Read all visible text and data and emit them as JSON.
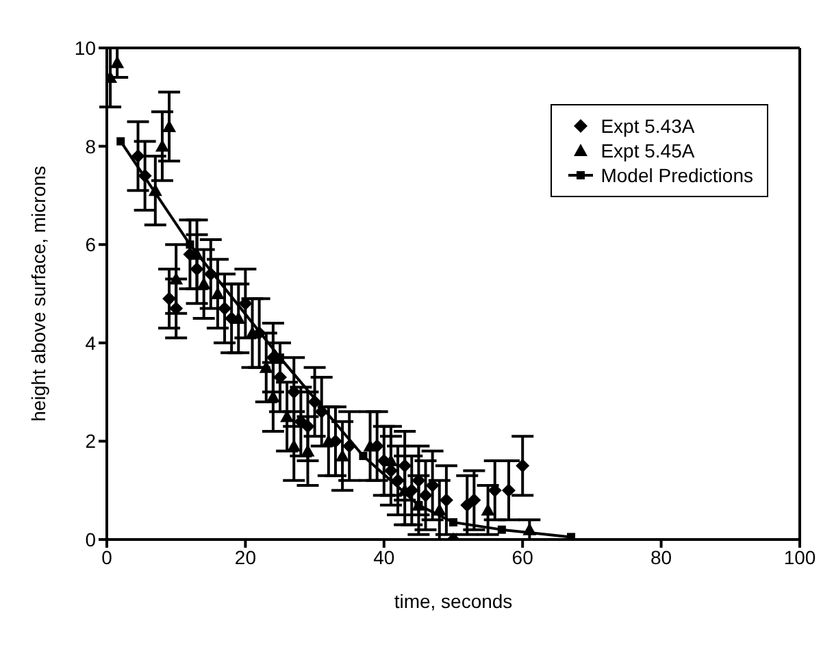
{
  "chart_data": {
    "type": "scatter",
    "xlabel": "time, seconds",
    "ylabel": "height above surface, microns",
    "xlim": [
      0,
      100
    ],
    "ylim": [
      0,
      10
    ],
    "xticks": [
      0,
      20,
      40,
      60,
      80,
      100
    ],
    "yticks": [
      0,
      2,
      4,
      6,
      8,
      10
    ],
    "grid": false,
    "legend": "top right",
    "series": [
      {
        "name": "Expt 5.43A",
        "color": "#000000",
        "marker": "diamond",
        "x": [
          4.5,
          5.5,
          9,
          10,
          12,
          13,
          15,
          17,
          18,
          20,
          22,
          24,
          25,
          27,
          28,
          29,
          30,
          31,
          33,
          35,
          39,
          40,
          41,
          42,
          43,
          44,
          45,
          46,
          47,
          49,
          50,
          52,
          53,
          56,
          58,
          60
        ],
        "values": [
          7.8,
          7.4,
          4.9,
          4.7,
          5.8,
          5.5,
          5.4,
          4.7,
          4.5,
          4.8,
          4.2,
          3.7,
          3.3,
          3,
          2.4,
          2.3,
          2.8,
          2.6,
          2,
          1.9,
          1.9,
          1.6,
          1.4,
          1.2,
          1.5,
          1,
          1.2,
          0.9,
          1.1,
          0.8,
          0,
          0.7,
          0.8,
          1,
          1,
          1.5
        ],
        "errors": [
          0.7,
          0.7,
          0.6,
          0.6,
          0.7,
          0.7,
          0.7,
          0.7,
          0.7,
          0.7,
          0.7,
          0.7,
          0.7,
          0.7,
          0.7,
          0.7,
          0.7,
          0.7,
          0.7,
          0.7,
          0.7,
          0.7,
          0.7,
          0.7,
          0.7,
          0.7,
          0.7,
          0.7,
          0.7,
          0.7,
          0,
          0.6,
          0.6,
          0.6,
          0.6,
          0.6
        ]
      },
      {
        "name": "Expt 5.45A",
        "color": "#000000",
        "marker": "triangle",
        "x": [
          0.5,
          1.5,
          7,
          8,
          9,
          10,
          13,
          14,
          16,
          19,
          21,
          23,
          24,
          26,
          27,
          29,
          32,
          34,
          38,
          41,
          43,
          45,
          48,
          55,
          61
        ],
        "values": [
          9.4,
          9.7,
          7.1,
          8,
          8.4,
          5.3,
          5.8,
          5.2,
          5,
          4.5,
          4.2,
          3.5,
          2.9,
          2.5,
          1.9,
          1.8,
          2,
          1.7,
          1.9,
          1.6,
          1,
          0.7,
          0.6,
          0.6,
          0.2
        ],
        "errors": [
          0.6,
          0.3,
          0.7,
          0.7,
          0.7,
          0.7,
          0.7,
          0.7,
          0.7,
          0.7,
          0.7,
          0.7,
          0.7,
          0.7,
          0.7,
          0.7,
          0.7,
          0.7,
          0.7,
          0.7,
          0.7,
          0.6,
          0.6,
          0.5,
          0.2
        ]
      },
      {
        "name": "Model Predictions",
        "color": "#000000",
        "type": "line",
        "marker": "square",
        "x": [
          2,
          12,
          25,
          37,
          45,
          50,
          57,
          67
        ],
        "values": [
          8.1,
          6,
          3.7,
          1.7,
          0.7,
          0.35,
          0.2,
          0.05
        ]
      }
    ]
  }
}
